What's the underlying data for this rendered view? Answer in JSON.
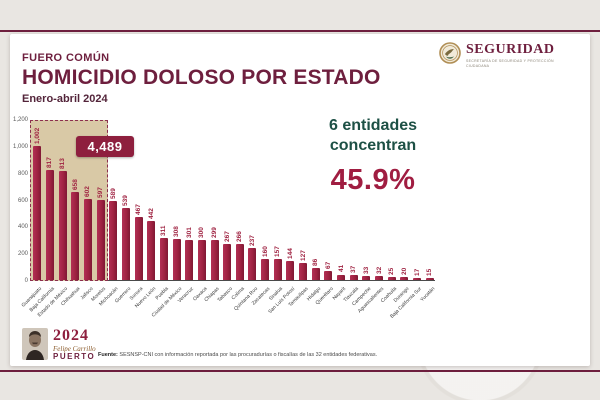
{
  "colors": {
    "maroon": "#9f2241",
    "maroon_dark": "#6e1f3e",
    "green": "#1d5045",
    "beige": "#d9c9a6",
    "gold": "#b08e55"
  },
  "header": {
    "kicker": "FUERO COMÚN",
    "title": "HOMICIDIO DOLOSO POR ESTADO",
    "subtitle": "Enero-abril 2024"
  },
  "logo": {
    "wordmark": "SEGURIDAD",
    "subtitle": "SECRETARÍA DE SEGURIDAD Y PROTECCIÓN CIUDADANA"
  },
  "callout": {
    "line1": "6 entidades",
    "line2": "concentran",
    "value": "45.9%"
  },
  "chart_data": {
    "type": "bar",
    "title": "HOMICIDIO DOLOSO POR ESTADO",
    "period": "Enero-abril 2024",
    "categories": [
      "Guanajuato",
      "Baja California",
      "Estado de México",
      "Chihuahua",
      "Jalisco",
      "Morelos",
      "Michoacán",
      "Guerrero",
      "Sonora",
      "Nuevo León",
      "Puebla",
      "Ciudad de México",
      "Veracruz",
      "Oaxaca",
      "Chiapas",
      "Tabasco",
      "Colima",
      "Quintana Roo",
      "Zacatecas",
      "Sinaloa",
      "San Luis Potosí",
      "Tamaulipas",
      "Hidalgo",
      "Querétaro",
      "Nayarit",
      "Tlaxcala",
      "Campeche",
      "Aguascalientes",
      "Coahuila",
      "Durango",
      "Baja California Sur",
      "Yucatán"
    ],
    "values": [
      1002,
      817,
      813,
      658,
      602,
      597,
      589,
      539,
      467,
      442,
      311,
      308,
      301,
      300,
      299,
      267,
      266,
      237,
      160,
      157,
      144,
      127,
      86,
      67,
      41,
      37,
      33,
      32,
      25,
      20,
      17,
      15
    ],
    "ylim": [
      0,
      1200
    ],
    "yticks": [
      0,
      200,
      400,
      600,
      800,
      1000,
      1200
    ],
    "ytick_labels": [
      "0",
      "200",
      "400",
      "600",
      "800",
      "1,000",
      "1,200"
    ],
    "grid": false,
    "legend": false,
    "highlight_box": {
      "covers_first_n": 6,
      "label": "4,489",
      "fill": "#d9c9a6"
    }
  },
  "brand": {
    "year": "2024",
    "name_line1": "Felipe Carrillo",
    "name_line2": "PUERTO"
  },
  "footer": {
    "source_label": "Fuente:",
    "source_text": " SESNSP-CNI con información reportada por las procuradurías o fiscalías de las 32 entidades federativas."
  }
}
